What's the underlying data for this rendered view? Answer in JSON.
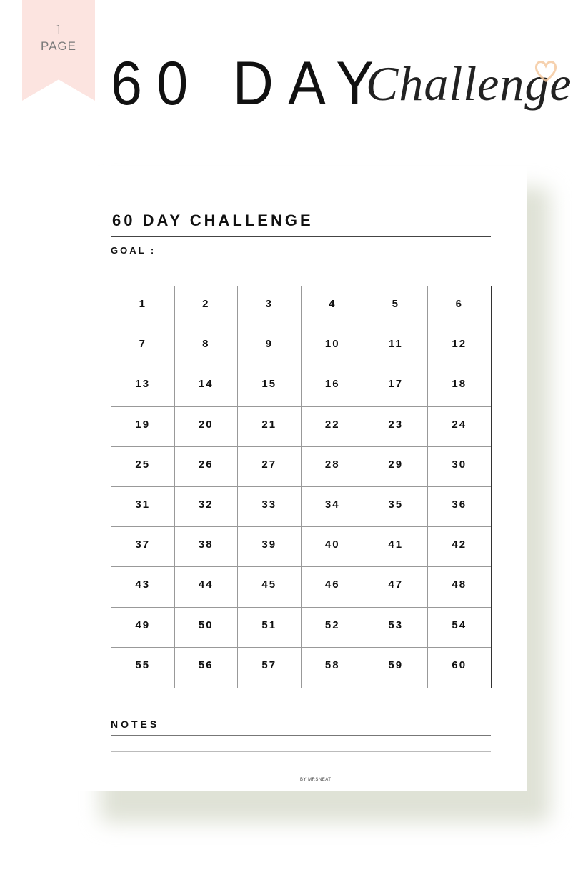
{
  "ribbon": {
    "count": "1",
    "label": "PAGE",
    "color": "#fce4e0"
  },
  "header": {
    "title": "60 DAY",
    "script_word": "Challenge",
    "decoration_icon": "heart-icon",
    "accent": "#f5c9a0"
  },
  "sheet": {
    "title": "60 DAY CHALLENGE",
    "goal_label": "GOAL :",
    "days": [
      "1",
      "2",
      "3",
      "4",
      "5",
      "6",
      "7",
      "8",
      "9",
      "10",
      "11",
      "12",
      "13",
      "14",
      "15",
      "16",
      "17",
      "18",
      "19",
      "20",
      "21",
      "22",
      "23",
      "24",
      "25",
      "26",
      "27",
      "28",
      "29",
      "30",
      "31",
      "32",
      "33",
      "34",
      "35",
      "36",
      "37",
      "38",
      "39",
      "40",
      "41",
      "42",
      "43",
      "44",
      "45",
      "46",
      "47",
      "48",
      "49",
      "50",
      "51",
      "52",
      "53",
      "54",
      "55",
      "56",
      "57",
      "58",
      "59",
      "60"
    ],
    "notes_label": "NOTES",
    "footer": "BY MRSNEAT"
  }
}
